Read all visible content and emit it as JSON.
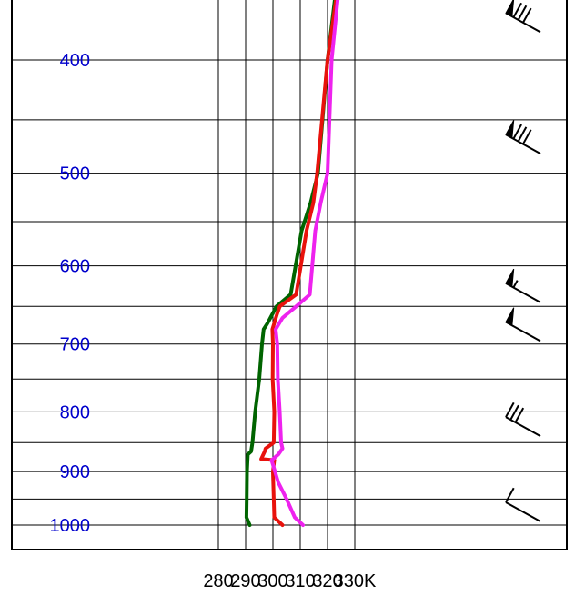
{
  "chart_data": {
    "type": "line",
    "title": "",
    "xlabel": "",
    "ylabel": "",
    "x_axis": {
      "scale": "linear",
      "xlim": [
        280,
        330
      ],
      "tick_values": [
        280,
        290,
        300,
        310,
        320,
        330
      ],
      "tick_labels": [
        "280",
        "290",
        "300",
        "310",
        "320",
        "330K"
      ]
    },
    "y_axis": {
      "scale": "log-pressure, inverted",
      "ylim": [
        1000,
        350
      ],
      "tick_values": [
        400,
        500,
        600,
        700,
        800,
        900,
        1000
      ],
      "tick_labels": [
        "400",
        "500",
        "600",
        "700",
        "800",
        "900",
        "1000"
      ],
      "extra_gridlines": [
        450,
        550,
        650,
        750,
        850,
        950
      ]
    },
    "grid": true,
    "legend": "none",
    "colors": {
      "grid": "#000000",
      "pressure_labels": "#0000cc",
      "dark_green_line": "#006400",
      "red_line": "#e8120c",
      "magenta_line": "#ee22ee",
      "wind_barbs": "#000000"
    },
    "series": [
      {
        "color": "#006400",
        "points": [
          [
            291.5,
            1000
          ],
          [
            290.3,
            985
          ],
          [
            290.4,
            950
          ],
          [
            290.5,
            900
          ],
          [
            290.8,
            870
          ],
          [
            292,
            865
          ],
          [
            292.5,
            850
          ],
          [
            293.5,
            800
          ],
          [
            295,
            750
          ],
          [
            296,
            700
          ],
          [
            296.6,
            680
          ],
          [
            298,
            672
          ],
          [
            301.3,
            650
          ],
          [
            306.5,
            635
          ],
          [
            310.5,
            560
          ],
          [
            313.8,
            530
          ],
          [
            316.5,
            500
          ],
          [
            320,
            400
          ],
          [
            323,
            350
          ]
        ]
      },
      {
        "color": "#e8120c",
        "points": [
          [
            303.5,
            1000
          ],
          [
            300.5,
            985
          ],
          [
            300.3,
            950
          ],
          [
            300,
            900
          ],
          [
            300.5,
            880
          ],
          [
            295.7,
            878
          ],
          [
            297,
            865
          ],
          [
            297.3,
            860
          ],
          [
            300.3,
            850
          ],
          [
            300.5,
            800
          ],
          [
            299.9,
            750
          ],
          [
            300,
            700
          ],
          [
            299.8,
            680
          ],
          [
            301.5,
            660
          ],
          [
            302.5,
            650
          ],
          [
            308.5,
            635
          ],
          [
            312.3,
            560
          ],
          [
            314.8,
            530
          ],
          [
            316.2,
            500
          ],
          [
            320,
            400
          ],
          [
            323.5,
            350
          ]
        ]
      },
      {
        "color": "#ee22ee",
        "points": [
          [
            311,
            1000
          ],
          [
            308,
            985
          ],
          [
            305,
            950
          ],
          [
            302,
            920
          ],
          [
            299.5,
            880
          ],
          [
            302,
            870
          ],
          [
            303.5,
            860
          ],
          [
            303,
            850
          ],
          [
            302.5,
            800
          ],
          [
            301.8,
            750
          ],
          [
            301.6,
            700
          ],
          [
            301,
            680
          ],
          [
            303.5,
            665
          ],
          [
            308.5,
            650
          ],
          [
            313.5,
            635
          ],
          [
            315.5,
            560
          ],
          [
            317.5,
            530
          ],
          [
            320,
            500
          ],
          [
            321.5,
            400
          ],
          [
            324,
            350
          ]
        ]
      }
    ],
    "wind_barbs": [
      {
        "pressure": 370,
        "pennants": 1,
        "full_barbs": 3,
        "half_barbs": 0
      },
      {
        "pressure": 470,
        "pennants": 1,
        "full_barbs": 3,
        "half_barbs": 0
      },
      {
        "pressure": 630,
        "pennants": 1,
        "full_barbs": 0,
        "half_barbs": 1
      },
      {
        "pressure": 680,
        "pennants": 1,
        "full_barbs": 0,
        "half_barbs": 0
      },
      {
        "pressure": 820,
        "pennants": 0,
        "full_barbs": 3,
        "half_barbs": 0
      },
      {
        "pressure": 970,
        "pennants": 0,
        "full_barbs": 1,
        "half_barbs": 0
      }
    ]
  }
}
